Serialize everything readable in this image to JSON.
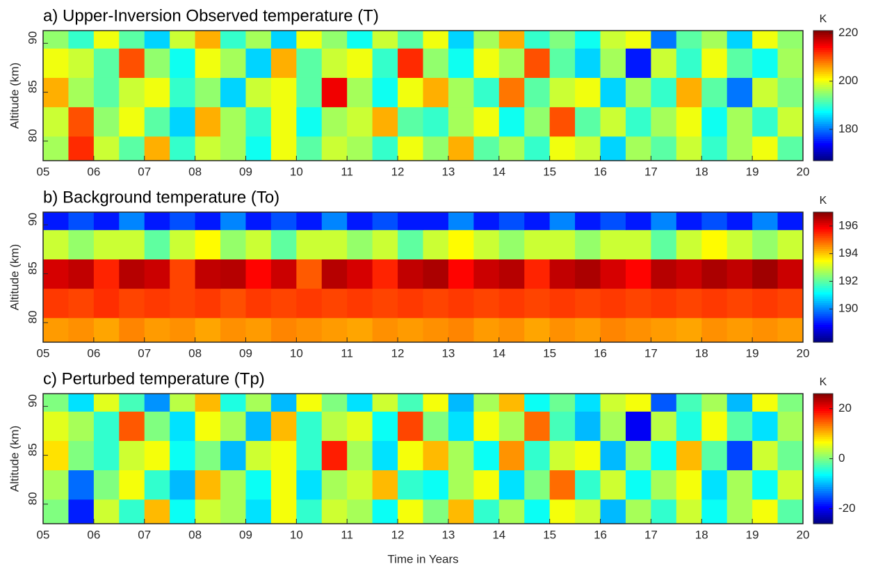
{
  "chart_data": [
    {
      "type": "contour",
      "title": "a) Upper-Inversion Observed temperature (T)",
      "ylabel": "Altitude (km)",
      "colorbar_label": "K",
      "colormap": "jet",
      "xlim": [
        5,
        20
      ],
      "xticks": [
        {
          "value": 5,
          "label": "05"
        },
        {
          "value": 6,
          "label": "06"
        },
        {
          "value": 7,
          "label": "07"
        },
        {
          "value": 8,
          "label": "08"
        },
        {
          "value": 9,
          "label": "09"
        },
        10,
        11,
        12,
        13,
        14,
        15,
        16,
        17,
        18,
        19,
        20
      ],
      "ylim": [
        78,
        91.3
      ],
      "yticks": [
        80,
        85,
        90
      ],
      "clim": [
        167,
        221
      ],
      "cticks": [
        180,
        200,
        220
      ],
      "x": [
        5.25,
        5.75,
        6.25,
        6.75,
        7.25,
        7.75,
        8.25,
        8.75,
        9.25,
        9.75,
        10.25,
        10.75,
        11.25,
        11.75,
        12.25,
        12.75,
        13.25,
        13.75,
        14.25,
        14.75,
        15.25,
        15.75,
        16.25,
        16.75,
        17.25,
        17.75,
        18.25,
        18.75,
        19.25,
        19.75
      ],
      "y": [
        79,
        82,
        85,
        88,
        91
      ],
      "z": [
        [
          196,
          212,
          198,
          192,
          205,
          190,
          198,
          196,
          188,
          200,
          192,
          198,
          196,
          190,
          200,
          195,
          205,
          192,
          196,
          190,
          200,
          198,
          185,
          196,
          192,
          198,
          190,
          196,
          200,
          192
        ],
        [
          198,
          210,
          195,
          200,
          192,
          185,
          205,
          196,
          190,
          200,
          188,
          196,
          198,
          205,
          192,
          190,
          196,
          200,
          188,
          195,
          210,
          192,
          198,
          190,
          196,
          200,
          188,
          196,
          190,
          198
        ],
        [
          205,
          196,
          192,
          198,
          200,
          190,
          195,
          185,
          198,
          200,
          192,
          215,
          196,
          188,
          200,
          205,
          196,
          190,
          208,
          192,
          198,
          200,
          185,
          196,
          190,
          205,
          192,
          180,
          198,
          194
        ],
        [
          200,
          198,
          192,
          210,
          195,
          188,
          200,
          196,
          185,
          205,
          192,
          198,
          200,
          190,
          212,
          195,
          188,
          200,
          196,
          210,
          192,
          185,
          196,
          175,
          198,
          190,
          200,
          192,
          188,
          196
        ],
        [
          195,
          190,
          200,
          192,
          185,
          198,
          205,
          190,
          196,
          185,
          200,
          195,
          188,
          198,
          192,
          200,
          185,
          196,
          205,
          190,
          194,
          188,
          198,
          200,
          180,
          192,
          196,
          185,
          200,
          195
        ]
      ]
    },
    {
      "type": "contour",
      "title": "b) Background temperature (To)",
      "ylabel": "Altitude (km)",
      "colorbar_label": "K",
      "colormap": "jet",
      "xlim": [
        5,
        20
      ],
      "xticks": [
        {
          "value": 5,
          "label": "05"
        },
        {
          "value": 6,
          "label": "06"
        },
        {
          "value": 7,
          "label": "07"
        },
        {
          "value": 8,
          "label": "08"
        },
        {
          "value": 9,
          "label": "09"
        },
        10,
        11,
        12,
        13,
        14,
        15,
        16,
        17,
        18,
        19,
        20
      ],
      "ylim": [
        78,
        91.3
      ],
      "yticks": [
        80,
        85,
        90
      ],
      "clim": [
        187.6,
        197
      ],
      "cticks": [
        190,
        192,
        194,
        196
      ],
      "x": [
        5.25,
        5.75,
        6.25,
        6.75,
        7.25,
        7.75,
        8.25,
        8.75,
        9.25,
        9.75,
        10.25,
        10.75,
        11.25,
        11.75,
        12.25,
        12.75,
        13.25,
        13.75,
        14.25,
        14.75,
        15.25,
        15.75,
        16.25,
        16.75,
        17.25,
        17.75,
        18.25,
        18.75,
        19.25,
        19.75
      ],
      "y": [
        79,
        82,
        85,
        88,
        91
      ],
      "z": [
        [
          194.4,
          194.5,
          194.3,
          194.6,
          194.4,
          194.5,
          194.3,
          194.5,
          194.4,
          194.6,
          194.5,
          194.4,
          194.3,
          194.5,
          194.4,
          194.5,
          194.6,
          194.4,
          194.5,
          194.3,
          194.5,
          194.4,
          194.6,
          194.5,
          194.4,
          194.3,
          194.5,
          194.4,
          194.5,
          194.4
        ],
        [
          195.3,
          195.2,
          195.4,
          195.2,
          195.3,
          195.2,
          195.3,
          195.1,
          195.3,
          195.2,
          195.3,
          195.2,
          195.3,
          195.2,
          195.3,
          195.2,
          195.3,
          195.2,
          195.3,
          195.2,
          195.3,
          195.2,
          195.3,
          195.2,
          195.3,
          195.2,
          195.3,
          195.2,
          195.3,
          195.2
        ],
        [
          196.2,
          196.4,
          195.5,
          196.5,
          196.3,
          195.2,
          196.4,
          196.5,
          195.8,
          196.3,
          195,
          196.5,
          196.2,
          195.5,
          196.4,
          196.6,
          195.8,
          196.3,
          196.5,
          195.5,
          196.4,
          196.6,
          196.2,
          195.8,
          196.5,
          196.3,
          196.6,
          196.4,
          196.7,
          196.3
        ],
        [
          193,
          192.5,
          193,
          193,
          192,
          193,
          193.5,
          192.5,
          193,
          192,
          193,
          193,
          192.5,
          193,
          192,
          193,
          193.5,
          193,
          192.5,
          193,
          193,
          192.5,
          193,
          193,
          192,
          193,
          193.5,
          193,
          192.5,
          193
        ],
        [
          189,
          189.5,
          189,
          190,
          189,
          189.5,
          189,
          190,
          189,
          189.5,
          189,
          190,
          189,
          189.5,
          189,
          189,
          190,
          189,
          189.5,
          189,
          190,
          189,
          189.5,
          189,
          190,
          189,
          189.5,
          189,
          190,
          189
        ]
      ]
    },
    {
      "type": "contour",
      "title": "c) Perturbed temperature (Tp)",
      "ylabel": "Altitude (km)",
      "xlabel": "Time in Years",
      "colorbar_label": "K",
      "colormap": "jet",
      "xlim": [
        5,
        20
      ],
      "xticks": [
        {
          "value": 5,
          "label": "05"
        },
        {
          "value": 6,
          "label": "06"
        },
        {
          "value": 7,
          "label": "07"
        },
        {
          "value": 8,
          "label": "08"
        },
        {
          "value": 9,
          "label": "09"
        },
        10,
        11,
        12,
        13,
        14,
        15,
        16,
        17,
        18,
        19,
        20
      ],
      "ylim": [
        78,
        91.3
      ],
      "yticks": [
        80,
        85,
        90
      ],
      "clim": [
        -26,
        26
      ],
      "cticks": [
        -20,
        0,
        20
      ],
      "x": [
        5.25,
        5.75,
        6.25,
        6.75,
        7.25,
        7.75,
        8.25,
        8.75,
        9.25,
        9.75,
        10.25,
        10.75,
        11.25,
        11.75,
        12.25,
        12.75,
        13.25,
        13.75,
        14.25,
        14.75,
        15.25,
        15.75,
        16.25,
        16.75,
        17.25,
        17.75,
        18.25,
        18.75,
        19.25,
        19.75
      ],
      "y": [
        79,
        82,
        85,
        88,
        91
      ],
      "z": [
        [
          0,
          -18,
          4,
          -4,
          10,
          -6,
          4,
          2,
          -8,
          6,
          -4,
          4,
          2,
          -6,
          6,
          0,
          10,
          -4,
          2,
          -6,
          6,
          4,
          -10,
          2,
          -4,
          4,
          -6,
          2,
          6,
          -2
        ],
        [
          2,
          -14,
          0,
          6,
          -4,
          -10,
          10,
          2,
          -6,
          6,
          -8,
          2,
          4,
          10,
          -4,
          -6,
          2,
          6,
          -8,
          0,
          14,
          -4,
          4,
          -6,
          2,
          6,
          -8,
          2,
          -6,
          4
        ],
        [
          8,
          0,
          -4,
          4,
          6,
          -6,
          0,
          -10,
          4,
          6,
          -4,
          18,
          2,
          -8,
          6,
          10,
          2,
          -6,
          12,
          -4,
          4,
          6,
          -10,
          2,
          -6,
          10,
          -2,
          -16,
          4,
          -1
        ],
        [
          5,
          2,
          -4,
          15,
          0,
          -8,
          6,
          2,
          -10,
          10,
          -4,
          3,
          5,
          -6,
          16,
          0,
          -8,
          6,
          2,
          14,
          -3,
          -10,
          2,
          -20,
          3,
          -5,
          6,
          -2,
          -8,
          2
        ],
        [
          0,
          -8,
          5,
          -3,
          -12,
          3,
          10,
          -5,
          2,
          -10,
          6,
          0,
          -8,
          4,
          -3,
          6,
          -10,
          2,
          10,
          -6,
          -1,
          -8,
          4,
          6,
          -15,
          -3,
          2,
          -10,
          6,
          0
        ]
      ]
    }
  ]
}
